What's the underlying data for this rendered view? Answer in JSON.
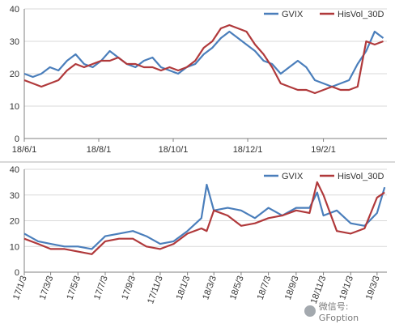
{
  "colors": {
    "gvix": "#4a7ebb",
    "hisvol": "#b0393b",
    "grid": "#d9d9d9",
    "axis": "#808080"
  },
  "chart_data": [
    {
      "type": "line",
      "ylim": [
        0,
        40
      ],
      "yticks": [
        0,
        10,
        20,
        30,
        40
      ],
      "x_tick_labels": [
        "18/6/1",
        "18/8/1",
        "18/10/1",
        "18/12/1",
        "19/2/1"
      ],
      "x_tick_dates": [
        "2018-06-01",
        "2018-08-01",
        "2018-10-01",
        "2018-12-01",
        "2019-02-01"
      ],
      "x_range": [
        "2018-06-01",
        "2019-03-25"
      ],
      "legend": "top-right",
      "series": [
        {
          "name": "GVIX",
          "x": [
            "2018-06-01",
            "2018-06-08",
            "2018-06-15",
            "2018-06-22",
            "2018-06-29",
            "2018-07-06",
            "2018-07-13",
            "2018-07-20",
            "2018-07-27",
            "2018-08-03",
            "2018-08-10",
            "2018-08-17",
            "2018-08-24",
            "2018-08-31",
            "2018-09-07",
            "2018-09-14",
            "2018-09-21",
            "2018-09-28",
            "2018-10-05",
            "2018-10-12",
            "2018-10-19",
            "2018-10-26",
            "2018-11-02",
            "2018-11-09",
            "2018-11-16",
            "2018-11-23",
            "2018-11-30",
            "2018-12-07",
            "2018-12-14",
            "2018-12-21",
            "2018-12-28",
            "2019-01-04",
            "2019-01-11",
            "2019-01-18",
            "2019-01-25",
            "2019-02-01",
            "2019-02-08",
            "2019-02-15",
            "2019-02-22",
            "2019-03-01",
            "2019-03-08",
            "2019-03-15",
            "2019-03-22"
          ],
          "values": [
            20,
            19,
            20,
            22,
            21,
            24,
            26,
            23,
            22,
            24,
            27,
            25,
            23,
            22,
            24,
            25,
            22,
            21,
            20,
            22,
            23,
            26,
            28,
            31,
            33,
            31,
            29,
            27,
            24,
            23,
            20,
            22,
            24,
            22,
            18,
            17,
            16,
            17,
            18,
            23,
            27,
            33,
            31
          ]
        },
        {
          "name": "HisVol_30D",
          "x": [
            "2018-06-01",
            "2018-06-08",
            "2018-06-15",
            "2018-06-22",
            "2018-06-29",
            "2018-07-06",
            "2018-07-13",
            "2018-07-20",
            "2018-07-27",
            "2018-08-03",
            "2018-08-10",
            "2018-08-17",
            "2018-08-24",
            "2018-08-31",
            "2018-09-07",
            "2018-09-14",
            "2018-09-21",
            "2018-09-28",
            "2018-10-05",
            "2018-10-12",
            "2018-10-19",
            "2018-10-26",
            "2018-11-02",
            "2018-11-09",
            "2018-11-16",
            "2018-11-23",
            "2018-11-30",
            "2018-12-07",
            "2018-12-14",
            "2018-12-21",
            "2018-12-28",
            "2019-01-04",
            "2019-01-11",
            "2019-01-18",
            "2019-01-25",
            "2019-02-01",
            "2019-02-08",
            "2019-02-15",
            "2019-02-22",
            "2019-03-01",
            "2019-03-08",
            "2019-03-15",
            "2019-03-22"
          ],
          "values": [
            18,
            17,
            16,
            17,
            18,
            21,
            23,
            22,
            23,
            24,
            24,
            25,
            23,
            23,
            22,
            22,
            21,
            22,
            21,
            22,
            24,
            28,
            30,
            34,
            35,
            34,
            33,
            29,
            26,
            22,
            17,
            16,
            15,
            15,
            14,
            15,
            16,
            15,
            15,
            16,
            30,
            29,
            30
          ]
        }
      ]
    },
    {
      "type": "line",
      "ylim": [
        0,
        40
      ],
      "yticks": [
        0,
        10,
        20,
        30,
        40
      ],
      "x_tick_labels": [
        "17/1/3",
        "17/3/3",
        "17/5/3",
        "17/7/3",
        "17/9/3",
        "17/11/3",
        "18/1/3",
        "18/3/3",
        "18/5/3",
        "18/7/3",
        "18/9/3",
        "18/11/3",
        "19/1/3",
        "19/3/3"
      ],
      "x_tick_dates": [
        "2017-01-03",
        "2017-03-03",
        "2017-05-03",
        "2017-07-03",
        "2017-09-03",
        "2017-11-03",
        "2018-01-03",
        "2018-03-03",
        "2018-05-03",
        "2018-07-03",
        "2018-09-03",
        "2018-11-03",
        "2019-01-03",
        "2019-03-03"
      ],
      "x_range": [
        "2017-01-03",
        "2019-03-25"
      ],
      "legend": "top-right",
      "series": [
        {
          "name": "GVIX",
          "x": [
            "2017-01-03",
            "2017-02-03",
            "2017-03-03",
            "2017-04-03",
            "2017-05-03",
            "2017-06-03",
            "2017-07-03",
            "2017-08-03",
            "2017-09-03",
            "2017-10-03",
            "2017-11-03",
            "2017-12-03",
            "2018-01-03",
            "2018-02-03",
            "2018-02-15",
            "2018-03-03",
            "2018-04-03",
            "2018-05-03",
            "2018-06-03",
            "2018-07-03",
            "2018-08-03",
            "2018-09-03",
            "2018-10-03",
            "2018-10-20",
            "2018-11-03",
            "2018-12-03",
            "2019-01-03",
            "2019-02-03",
            "2019-03-03",
            "2019-03-20"
          ],
          "values": [
            15,
            12,
            11,
            10,
            10,
            9,
            14,
            15,
            16,
            14,
            11,
            12,
            16,
            21,
            34,
            24,
            25,
            24,
            21,
            25,
            22,
            25,
            25,
            31,
            22,
            24,
            19,
            18,
            23,
            33
          ]
        },
        {
          "name": "HisVol_30D",
          "x": [
            "2017-01-03",
            "2017-02-03",
            "2017-03-03",
            "2017-04-03",
            "2017-05-03",
            "2017-06-03",
            "2017-07-03",
            "2017-08-03",
            "2017-09-03",
            "2017-10-03",
            "2017-11-03",
            "2017-12-03",
            "2018-01-03",
            "2018-02-03",
            "2018-02-15",
            "2018-03-03",
            "2018-04-03",
            "2018-05-03",
            "2018-06-03",
            "2018-07-03",
            "2018-08-03",
            "2018-09-03",
            "2018-10-03",
            "2018-10-20",
            "2018-11-03",
            "2018-12-03",
            "2019-01-03",
            "2019-02-03",
            "2019-03-03",
            "2019-03-20"
          ],
          "values": [
            13,
            11,
            9,
            9,
            8,
            7,
            12,
            13,
            13,
            10,
            9,
            11,
            15,
            17,
            16,
            24,
            22,
            18,
            19,
            21,
            22,
            24,
            23,
            35,
            30,
            16,
            15,
            17,
            29,
            31
          ]
        }
      ]
    }
  ],
  "watermark": {
    "text": "微信号: GFoption"
  }
}
